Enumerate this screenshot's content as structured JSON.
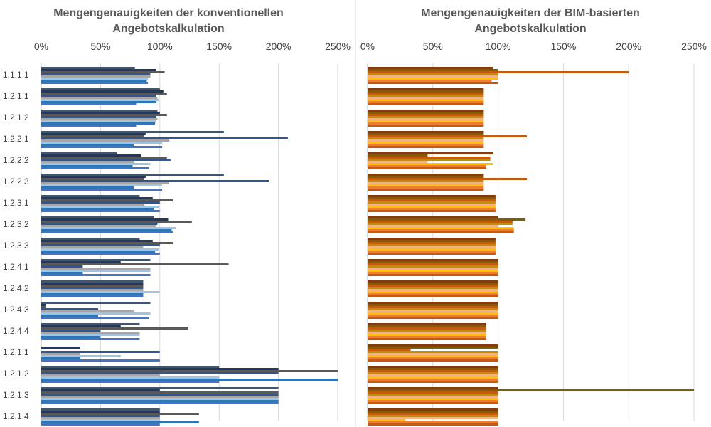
{
  "chart_data": [
    {
      "type": "bar",
      "orientation": "horizontal",
      "title": "Mengengenauigkeiten der konventionellen Angebotskalkulation",
      "title_lines": [
        "Mengengenauigkeiten der konventionellen",
        "Angebotskalkulation"
      ],
      "xlim": [
        0,
        2.5
      ],
      "x_ticks": [
        0,
        0.5,
        1.0,
        1.5,
        2.0,
        2.5
      ],
      "x_tick_labels": [
        "0%",
        "50%",
        "100%",
        "150%",
        "200%",
        "250%"
      ],
      "grid": "vertical",
      "colors": [
        "#44546a",
        "#1f3864",
        "#595959",
        "#2f5597",
        "#a6a6a6",
        "#9dc3e6",
        "#2e75b6",
        "#4472c4"
      ],
      "categories": [
        "1.1.1.1",
        "1.2.1.1",
        "1.2.1.2",
        "1.2.2.1",
        "1.2.2.2",
        "1.2.2.3",
        "1.2.3.1",
        "1.2.3.2",
        "1.2.3.3",
        "1.2.4.1",
        "1.2.4.2",
        "1.2.4.3",
        "1.2.4.4",
        "1.2.1.1",
        "1.2.1.2",
        "1.2.1.3",
        "1.2.1.4"
      ],
      "values": [
        [
          0.79,
          0.97,
          1.04,
          0.92,
          0.92,
          0.9,
          0.89,
          0.9
        ],
        [
          1.0,
          1.03,
          1.06,
          0.97,
          0.98,
          0.99,
          0.97,
          0.8
        ],
        [
          0.98,
          1.0,
          1.06,
          0.97,
          0.98,
          0.97,
          0.96,
          0.8
        ],
        [
          1.54,
          0.88,
          0.87,
          2.08,
          1.08,
          1.02,
          0.78,
          1.02
        ],
        [
          0.64,
          0.84,
          1.06,
          1.09,
          0.78,
          0.92,
          0.77,
          0.91
        ],
        [
          1.54,
          0.88,
          0.87,
          1.92,
          1.08,
          1.02,
          0.78,
          1.02
        ],
        [
          0.83,
          0.94,
          1.11,
          1.0,
          0.87,
          0.99,
          0.95,
          1.0
        ],
        [
          0.95,
          1.07,
          1.27,
          0.98,
          0.97,
          1.14,
          1.1,
          1.11
        ],
        [
          0.83,
          0.94,
          1.11,
          1.0,
          0.86,
          0.99,
          0.96,
          1.0
        ],
        [
          0.92,
          0.67,
          1.58,
          0.35,
          0.92,
          0.92,
          0.35,
          0.92
        ],
        [
          0.86,
          0.86,
          0.86,
          0.86,
          0.86,
          1.0,
          0.86,
          0.86
        ],
        [
          0.92,
          0.04,
          0.04,
          0.48,
          0.78,
          0.92,
          0.48,
          0.91
        ],
        [
          0.83,
          0.67,
          1.24,
          0.5,
          0.83,
          0.83,
          0.5,
          0.83
        ],
        [
          0.0,
          0.33,
          0.0,
          1.0,
          0.33,
          0.67,
          0.33,
          1.0
        ],
        [
          1.5,
          2.0,
          2.5,
          2.0,
          1.0,
          1.5,
          2.5,
          1.5
        ],
        [
          2.0,
          1.0,
          2.0,
          2.0,
          2.0,
          2.0,
          2.0,
          2.0
        ],
        [
          1.0,
          1.0,
          1.33,
          1.0,
          1.0,
          1.0,
          1.33,
          1.0
        ]
      ]
    },
    {
      "type": "bar",
      "orientation": "horizontal",
      "title": "Mengengenauigkeiten der BIM-basierten Angebotskalkulation",
      "title_lines": [
        "Mengengenauigkeiten der BIM-basierten",
        "Angebotskalkulation"
      ],
      "xlim": [
        0,
        2.5
      ],
      "x_ticks": [
        0,
        0.5,
        1.0,
        1.5,
        2.0,
        2.5
      ],
      "x_tick_labels": [
        "0%",
        "50%",
        "100%",
        "150%",
        "200%",
        "250%"
      ],
      "grid": "vertical",
      "colors": [
        "#843c0c",
        "#7f6000",
        "#c55a11",
        "#bf9000",
        "#f4b183",
        "#ffc000",
        "#ed7d31",
        "#c55a11"
      ],
      "categories": [
        "",
        "",
        "",
        "",
        "",
        "",
        "",
        "",
        "",
        "",
        "",
        "",
        "",
        "",
        "",
        "",
        ""
      ],
      "values": [
        [
          0.96,
          1.0,
          2.0,
          1.0,
          1.0,
          1.0,
          0.95,
          1.0
        ],
        [
          0.89,
          0.89,
          0.89,
          0.89,
          0.89,
          0.89,
          0.89,
          0.89
        ],
        [
          0.89,
          0.89,
          0.89,
          0.89,
          0.89,
          0.89,
          0.89,
          0.89
        ],
        [
          0.89,
          0.89,
          1.22,
          0.89,
          0.89,
          0.89,
          0.89,
          0.89
        ],
        [
          0.96,
          0.46,
          0.94,
          0.94,
          0.46,
          0.96,
          0.91,
          0.91
        ],
        [
          0.89,
          0.89,
          1.22,
          0.89,
          0.89,
          0.89,
          0.89,
          0.89
        ],
        [
          0.98,
          0.98,
          0.98,
          0.98,
          0.98,
          0.98,
          0.98,
          0.98
        ],
        [
          1.0,
          1.21,
          1.11,
          1.11,
          1.0,
          1.12,
          1.12,
          1.12
        ],
        [
          0.98,
          0.98,
          0.98,
          0.98,
          0.98,
          0.98,
          0.98,
          0.98
        ],
        [
          1.0,
          1.0,
          1.0,
          1.0,
          1.0,
          1.0,
          1.0,
          1.0
        ],
        [
          1.0,
          1.0,
          1.0,
          1.0,
          1.0,
          1.0,
          1.0,
          1.0
        ],
        [
          1.0,
          1.0,
          1.0,
          1.0,
          1.0,
          1.0,
          1.0,
          1.0
        ],
        [
          0.91,
          0.91,
          0.91,
          0.91,
          0.91,
          0.91,
          0.91,
          0.91
        ],
        [
          1.0,
          1.0,
          0.33,
          1.0,
          1.0,
          1.0,
          1.0,
          1.0
        ],
        [
          1.0,
          1.0,
          1.0,
          1.0,
          1.0,
          1.0,
          1.0,
          1.0
        ],
        [
          1.0,
          2.5,
          1.0,
          1.0,
          1.0,
          1.0,
          1.0,
          1.0
        ],
        [
          1.0,
          1.0,
          1.0,
          1.0,
          1.0,
          0.29,
          1.0,
          1.0
        ]
      ]
    }
  ]
}
